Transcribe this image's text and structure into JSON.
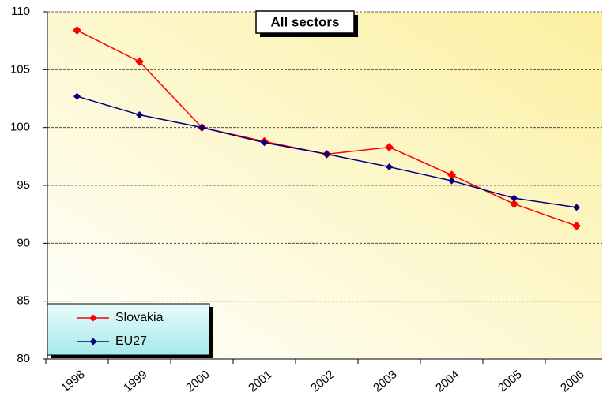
{
  "chart_data": {
    "type": "line",
    "title": "All sectors",
    "categories": [
      "1998",
      "1999",
      "2000",
      "2001",
      "2002",
      "2003",
      "2004",
      "2005",
      "2006"
    ],
    "series": [
      {
        "name": "Slovakia",
        "color": "#ff0000",
        "values": [
          108.4,
          105.7,
          100.0,
          98.8,
          97.7,
          98.3,
          95.9,
          93.4,
          91.5
        ]
      },
      {
        "name": "EU27",
        "color": "#000080",
        "values": [
          102.7,
          101.1,
          100.0,
          98.7,
          97.7,
          96.6,
          95.4,
          93.9,
          93.1
        ]
      }
    ],
    "ylim": [
      80,
      110
    ],
    "yticks": [
      80,
      85,
      90,
      95,
      100,
      105,
      110
    ],
    "grid": true,
    "legend": "lower left"
  }
}
